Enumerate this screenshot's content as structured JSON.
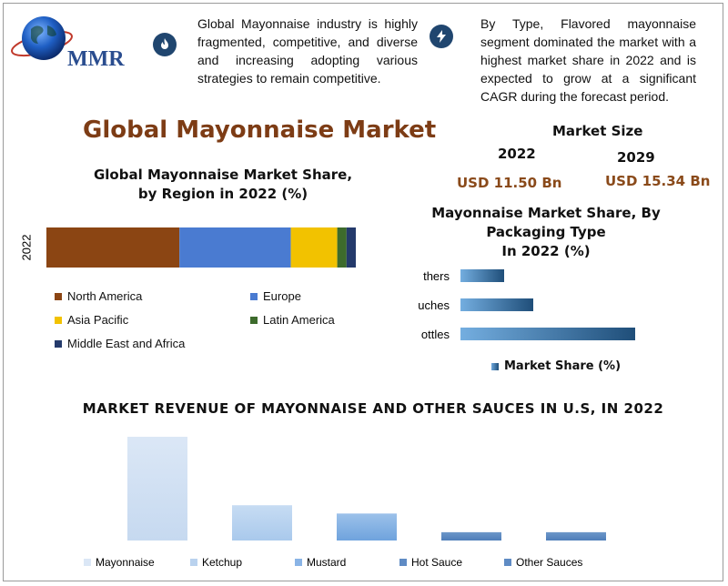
{
  "logo": {
    "text": "MMR"
  },
  "info": {
    "left": "Global Mayonnaise industry is highly fragmented, competitive, and diverse and increasing adopting various strategies to remain competitive.",
    "right": "By Type, Flavored mayonnaise segment dominated the market with a highest market share in 2022 and is expected to grow at a significant CAGR during the forecast period.",
    "left_icon": "fire-icon",
    "right_icon": "lightning-icon"
  },
  "title": "Global Mayonnaise Market",
  "market_size": {
    "heading": "Market Size",
    "year_a": "2022",
    "value_a": "USD 11.50 Bn",
    "year_b": "2029",
    "value_b": "USD 15.34 Bn"
  },
  "colors": {
    "title": "#7d3c15",
    "value": "#8a4a1a",
    "icon_bg": "#20466f"
  },
  "chart_data": [
    {
      "type": "bar",
      "orientation": "horizontal-stacked",
      "title": "Global Mayonnaise Market Share, by Region in 2022 (%)",
      "title_line1": "Global Mayonnaise Market Share,",
      "title_line2": "by Region in 2022 (%)",
      "categories": [
        "2022"
      ],
      "series": [
        {
          "name": "North America",
          "values": [
            43
          ],
          "color": "#8b4513"
        },
        {
          "name": "Europe",
          "values": [
            36
          ],
          "color": "#4a7bd1"
        },
        {
          "name": "Asia Pacific",
          "values": [
            15
          ],
          "color": "#f2c200"
        },
        {
          "name": "Latin America",
          "values": [
            3
          ],
          "color": "#3d6b2c"
        },
        {
          "name": "Middle East and Africa",
          "values": [
            3
          ],
          "color": "#243a6b"
        }
      ],
      "legend_position": "bottom"
    },
    {
      "type": "bar",
      "orientation": "horizontal",
      "title": "Mayonnaise Market Share, By Packaging Type In 2022 (%)",
      "title_line1": "Mayonnaise Market Share, By",
      "title_line2": "Packaging Type",
      "title_line3": "In 2022 (%)",
      "categories": [
        "Others",
        "Pouches",
        "Bottles"
      ],
      "tick_labels": [
        "thers",
        "uches",
        "ottles"
      ],
      "series": [
        {
          "name": "Market Share (%)",
          "values": [
            15,
            25,
            60
          ]
        }
      ],
      "legend_position": "bottom"
    },
    {
      "type": "bar",
      "title": "MARKET REVENUE OF MAYONNAISE AND OTHER SAUCES IN U.S, IN 2022",
      "categories": [
        "Mayonnaise",
        "Ketchup",
        "Mustard",
        "Hot Sauce",
        "Other Sauces"
      ],
      "values": [
        100,
        34,
        26,
        8,
        8
      ],
      "legend_position": "bottom"
    }
  ]
}
